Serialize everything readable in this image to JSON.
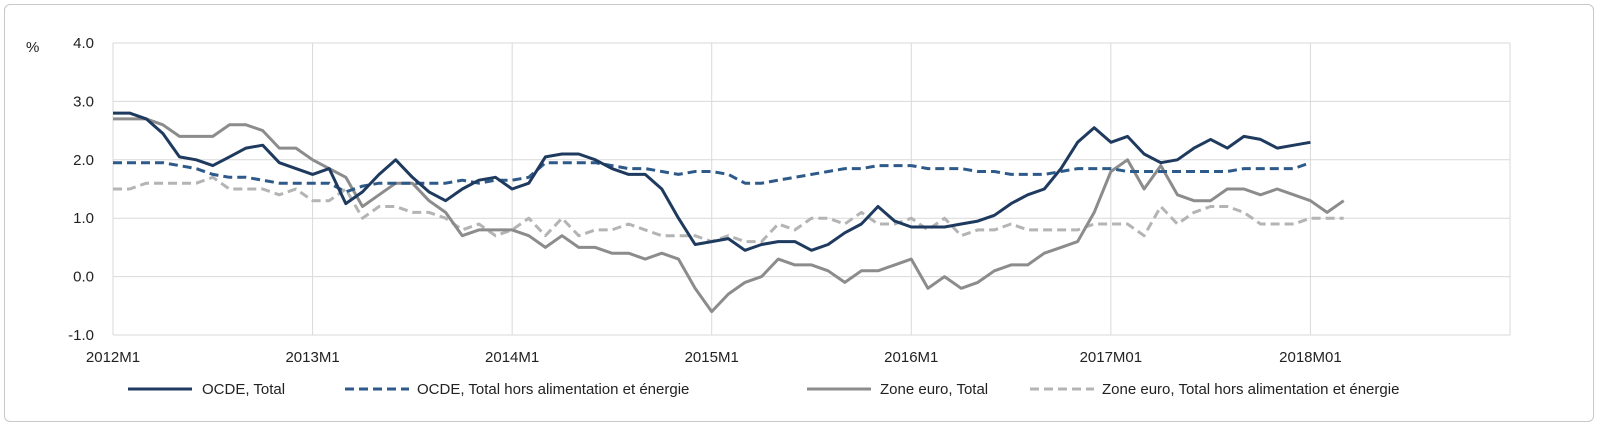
{
  "chart_data": {
    "type": "line",
    "title": "",
    "ylabel": "%",
    "xlabel": "",
    "ylim": [
      -1.0,
      4.0
    ],
    "yticks": [
      "-1.0",
      "0.0",
      "1.0",
      "2.0",
      "3.0",
      "4.0"
    ],
    "ytick_values": [
      -1,
      0,
      1,
      2,
      3,
      4
    ],
    "xtick_labels": [
      "2012M1",
      "2013M1",
      "2014M1",
      "2015M1",
      "2016M1",
      "2017M01",
      "2018M01"
    ],
    "xtick_index": [
      0,
      12,
      24,
      36,
      48,
      60,
      72
    ],
    "x_count": 84,
    "grid": true,
    "legend_position": "bottom",
    "series": [
      {
        "name": "OCDE, Total",
        "color": "#1f3a5f",
        "dash": "solid",
        "values": [
          2.8,
          2.8,
          2.7,
          2.45,
          2.05,
          2.0,
          1.9,
          2.05,
          2.2,
          2.25,
          1.95,
          1.85,
          1.75,
          1.85,
          1.25,
          1.45,
          1.75,
          2.0,
          1.7,
          1.45,
          1.3,
          1.5,
          1.65,
          1.7,
          1.5,
          1.6,
          2.05,
          2.1,
          2.1,
          2.0,
          1.85,
          1.75,
          1.75,
          1.5,
          1.0,
          0.55,
          0.6,
          0.65,
          0.45,
          0.55,
          0.6,
          0.6,
          0.45,
          0.55,
          0.75,
          0.9,
          1.2,
          0.95,
          0.85,
          0.85,
          0.85,
          0.9,
          0.95,
          1.05,
          1.25,
          1.4,
          1.5,
          1.85,
          2.3,
          2.55,
          2.3,
          2.4,
          2.1,
          1.95,
          2.0,
          2.2,
          2.35,
          2.2,
          2.4,
          2.35,
          2.2,
          2.25,
          2.3
        ]
      },
      {
        "name": "OCDE, Total hors alimentation et énergie",
        "color": "#2e5a8a",
        "dash": "dashed",
        "values": [
          1.95,
          1.95,
          1.95,
          1.95,
          1.9,
          1.85,
          1.75,
          1.7,
          1.7,
          1.65,
          1.6,
          1.6,
          1.6,
          1.6,
          1.45,
          1.55,
          1.6,
          1.6,
          1.6,
          1.6,
          1.6,
          1.65,
          1.6,
          1.65,
          1.65,
          1.7,
          1.95,
          1.95,
          1.95,
          1.95,
          1.9,
          1.85,
          1.85,
          1.8,
          1.75,
          1.8,
          1.8,
          1.75,
          1.6,
          1.6,
          1.65,
          1.7,
          1.75,
          1.8,
          1.85,
          1.85,
          1.9,
          1.9,
          1.9,
          1.85,
          1.85,
          1.85,
          1.8,
          1.8,
          1.75,
          1.75,
          1.75,
          1.8,
          1.85,
          1.85,
          1.85,
          1.8,
          1.8,
          1.8,
          1.8,
          1.8,
          1.8,
          1.8,
          1.85,
          1.85,
          1.85,
          1.85,
          1.95
        ]
      },
      {
        "name": "Zone euro, Total",
        "color": "#8c8c8c",
        "dash": "solid",
        "values": [
          2.7,
          2.7,
          2.7,
          2.6,
          2.4,
          2.4,
          2.4,
          2.6,
          2.6,
          2.5,
          2.2,
          2.2,
          2.0,
          1.85,
          1.7,
          1.2,
          1.4,
          1.6,
          1.6,
          1.3,
          1.1,
          0.7,
          0.8,
          0.8,
          0.8,
          0.7,
          0.5,
          0.7,
          0.5,
          0.5,
          0.4,
          0.4,
          0.3,
          0.4,
          0.3,
          -0.2,
          -0.6,
          -0.3,
          -0.1,
          0.0,
          0.3,
          0.2,
          0.2,
          0.1,
          -0.1,
          0.1,
          0.1,
          0.2,
          0.3,
          -0.2,
          0.0,
          -0.2,
          -0.1,
          0.1,
          0.2,
          0.2,
          0.4,
          0.5,
          0.6,
          1.1,
          1.8,
          2.0,
          1.5,
          1.9,
          1.4,
          1.3,
          1.3,
          1.5,
          1.5,
          1.4,
          1.5,
          1.4,
          1.3,
          1.1,
          1.3
        ]
      },
      {
        "name": "Zone euro, Total hors alimentation et énergie",
        "color": "#b4b4b4",
        "dash": "dashed",
        "values": [
          1.5,
          1.5,
          1.6,
          1.6,
          1.6,
          1.6,
          1.7,
          1.5,
          1.5,
          1.5,
          1.4,
          1.5,
          1.3,
          1.3,
          1.5,
          1.0,
          1.2,
          1.2,
          1.1,
          1.1,
          1.0,
          0.8,
          0.9,
          0.7,
          0.8,
          1.0,
          0.7,
          1.0,
          0.7,
          0.8,
          0.8,
          0.9,
          0.8,
          0.7,
          0.7,
          0.7,
          0.6,
          0.7,
          0.6,
          0.6,
          0.9,
          0.8,
          1.0,
          1.0,
          0.9,
          1.1,
          0.9,
          0.9,
          1.0,
          0.8,
          1.0,
          0.7,
          0.8,
          0.8,
          0.9,
          0.8,
          0.8,
          0.8,
          0.8,
          0.9,
          0.9,
          0.9,
          0.7,
          1.2,
          0.9,
          1.1,
          1.2,
          1.2,
          1.1,
          0.9,
          0.9,
          0.9,
          1.0,
          1.0,
          1.0
        ]
      }
    ]
  }
}
